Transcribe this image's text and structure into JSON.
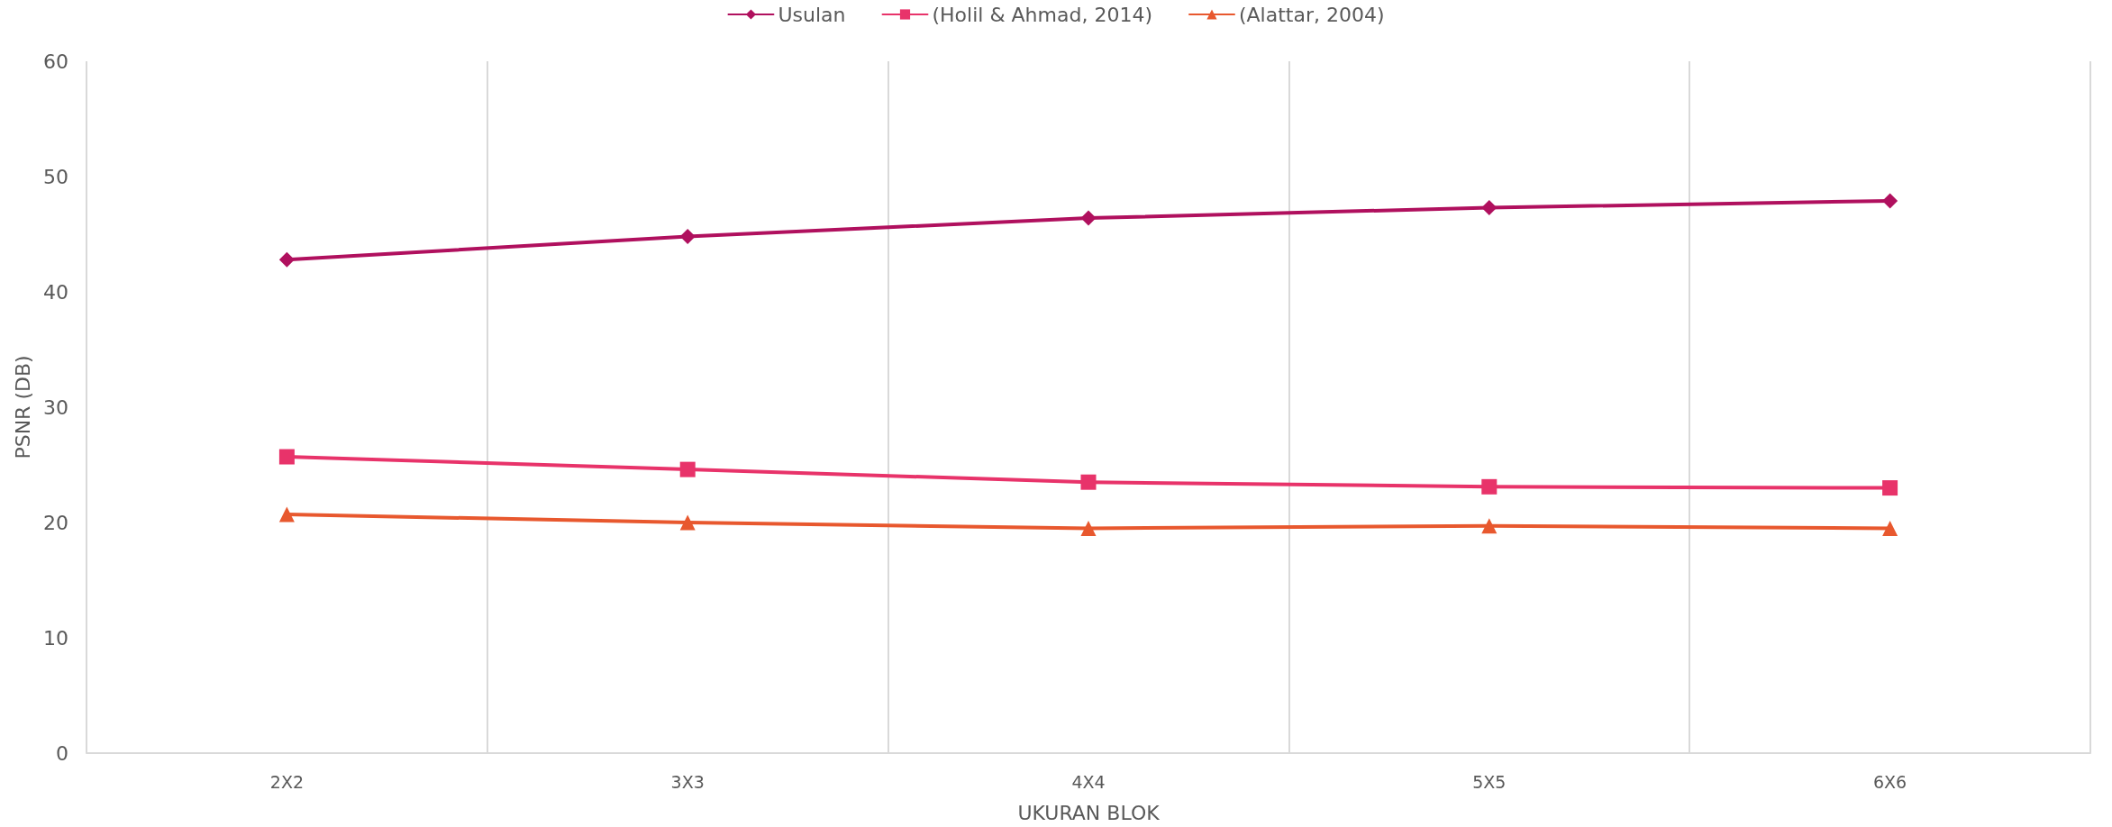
{
  "chart_data": {
    "type": "line",
    "xlabel": "UKURAN BLOK",
    "ylabel": "PSNR (DB)",
    "categories": [
      "2X2",
      "3X3",
      "4X4",
      "5X5",
      "6X6"
    ],
    "series": [
      {
        "name": "Usulan",
        "color": "#b0105e",
        "marker": "diamond",
        "values": [
          42.8,
          44.8,
          46.4,
          47.3,
          47.9
        ]
      },
      {
        "name": "(Holil & Ahmad, 2014)",
        "color": "#e8336a",
        "marker": "square",
        "values": [
          25.7,
          24.6,
          23.5,
          23.1,
          23.0
        ]
      },
      {
        "name": "(Alattar, 2004)",
        "color": "#e8582e",
        "marker": "triangle",
        "values": [
          20.7,
          20.0,
          19.5,
          19.7,
          19.5
        ]
      }
    ],
    "ylim": [
      0,
      60
    ],
    "yticks": [
      0,
      10,
      20,
      30,
      40,
      50,
      60
    ],
    "grid": "x",
    "legend": "top",
    "line_style": "solid"
  }
}
